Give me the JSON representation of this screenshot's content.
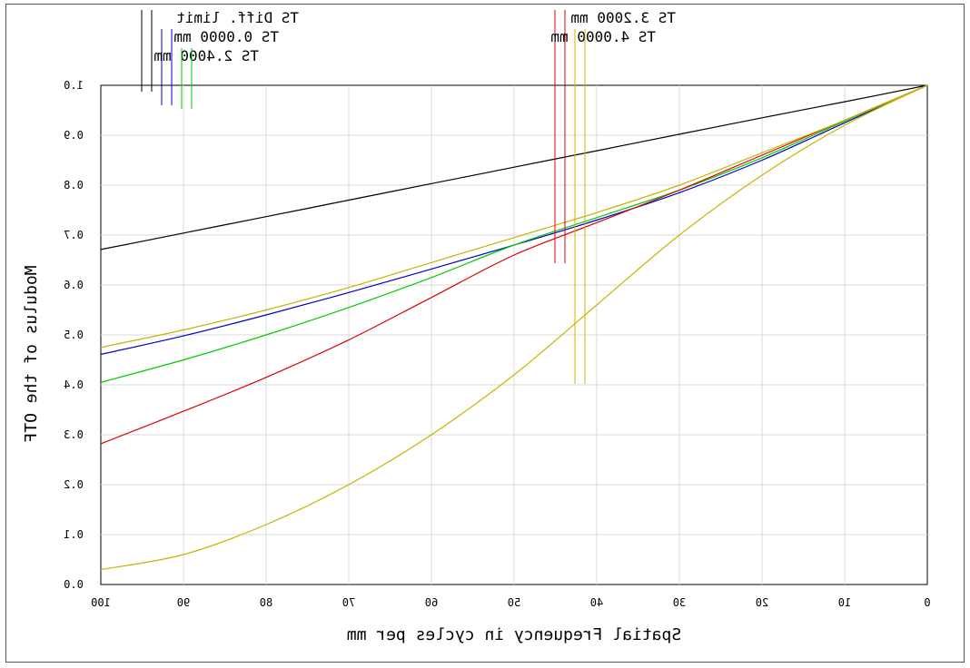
{
  "chart_data": {
    "type": "line",
    "xlabel": "Spatial Frequency in cycles per mm",
    "ylabel": "Modulus of the OTF",
    "xlim": [
      0,
      100
    ],
    "ylim": [
      0,
      1
    ],
    "grid": true,
    "mirrored": true,
    "x_ticks": [
      "0",
      "10",
      "20",
      "30",
      "40",
      "50",
      "60",
      "70",
      "80",
      "90",
      "100"
    ],
    "y_ticks": [
      "0.0",
      "0.1",
      "0.2",
      "0.3",
      "0.4",
      "0.5",
      "0.6",
      "0.7",
      "0.8",
      "0.9",
      "1.0"
    ],
    "legend": {
      "placement": "top",
      "left_group": [
        {
          "label": "TS Diff. limit",
          "colors": [
            "#000000",
            "#000000"
          ]
        },
        {
          "label": "TS 0.0000 mm",
          "colors": [
            "#0000cc",
            "#0000cc"
          ]
        },
        {
          "label": "TS 2.4000 mm",
          "colors": [
            "#00cc00",
            "#00cc00"
          ]
        }
      ],
      "right_group": [
        {
          "label": "TS 3.2000 mm",
          "colors": [
            "#dd0000",
            "#dd0000"
          ]
        },
        {
          "label": "TS 4.0000 mm",
          "colors": [
            "#c8b400",
            "#c8b400"
          ]
        }
      ]
    },
    "series": [
      {
        "name": "TS Diff. limit",
        "color": "#000000",
        "x": [
          0,
          10,
          20,
          30,
          40,
          50,
          60,
          70,
          80,
          90,
          100
        ],
        "y": [
          1.0,
          0.967,
          0.935,
          0.902,
          0.869,
          0.836,
          0.803,
          0.77,
          0.737,
          0.704,
          0.671
        ]
      },
      {
        "name": "TS 0.0000 mm",
        "color": "#0000cc",
        "x": [
          0,
          10,
          20,
          30,
          40,
          50,
          60,
          70,
          80,
          90,
          100
        ],
        "y": [
          1.0,
          0.925,
          0.85,
          0.785,
          0.73,
          0.68,
          0.632,
          0.585,
          0.54,
          0.498,
          0.461
        ]
      },
      {
        "name": "TS 2.4000 mm",
        "color": "#00cc00",
        "x": [
          0,
          10,
          20,
          30,
          40,
          50,
          60,
          70,
          80,
          90,
          100
        ],
        "y": [
          1.0,
          0.928,
          0.855,
          0.79,
          0.735,
          0.68,
          0.615,
          0.555,
          0.5,
          0.45,
          0.405
        ]
      },
      {
        "name": "TS 3.2000 mm",
        "color": "#dd0000",
        "x": [
          0,
          10,
          20,
          30,
          40,
          50,
          60,
          70,
          80,
          90,
          100
        ],
        "y": [
          1.0,
          0.93,
          0.86,
          0.79,
          0.725,
          0.66,
          0.575,
          0.49,
          0.415,
          0.347,
          0.282
        ]
      },
      {
        "name": "TS 4.0000 mm",
        "color": "#c8b400",
        "x": [
          0,
          10,
          20,
          30,
          40,
          50,
          60,
          70,
          80,
          90,
          100
        ],
        "y": [
          1.0,
          0.93,
          0.865,
          0.8,
          0.745,
          0.695,
          0.645,
          0.595,
          0.55,
          0.51,
          0.475
        ]
      },
      {
        "name": "TS 4.0000 mm",
        "color": "#c8b400",
        "x": [
          0,
          10,
          20,
          30,
          40,
          50,
          60,
          70,
          80,
          90,
          100
        ],
        "y": [
          1.0,
          0.92,
          0.82,
          0.7,
          0.56,
          0.42,
          0.3,
          0.2,
          0.12,
          0.06,
          0.03
        ]
      }
    ]
  }
}
